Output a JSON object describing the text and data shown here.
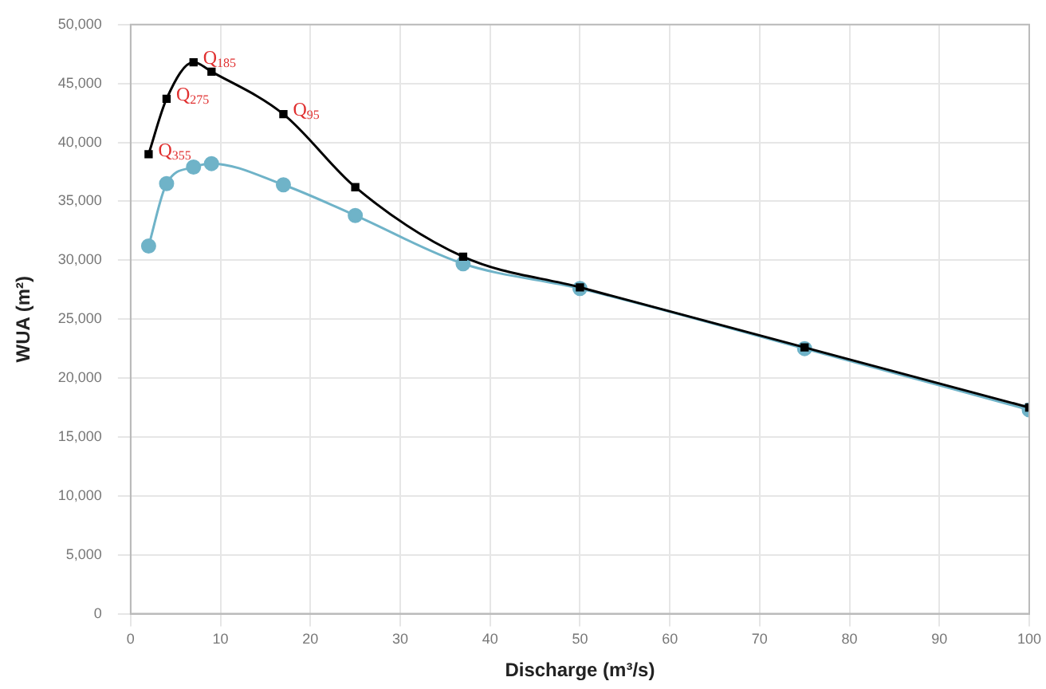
{
  "chart_data": {
    "type": "line",
    "xlabel": "Discharge (m³/s)",
    "ylabel": "WUA (m²)",
    "xlim": [
      0,
      100
    ],
    "xticks": [
      0,
      10,
      20,
      30,
      40,
      50,
      60,
      70,
      80,
      90,
      100
    ],
    "ylim": [
      0,
      50000
    ],
    "yticks": [
      {
        "value": 0,
        "label": "0"
      },
      {
        "value": 5000,
        "label": "5,000"
      },
      {
        "value": 10000,
        "label": "10,000"
      },
      {
        "value": 15000,
        "label": "15,000"
      },
      {
        "value": 20000,
        "label": "20,000"
      },
      {
        "value": 25000,
        "label": "25,000"
      },
      {
        "value": 30000,
        "label": "30,000"
      },
      {
        "value": 35000,
        "label": "35,000"
      },
      {
        "value": 40000,
        "label": "40,000"
      },
      {
        "value": 45000,
        "label": "45,000"
      },
      {
        "value": 50000,
        "label": "50,000"
      }
    ],
    "grid": true,
    "legend": false,
    "series": [
      {
        "color": "#000000",
        "marker": "square",
        "x": [
          2,
          4,
          7,
          9,
          17,
          25,
          37,
          50,
          75,
          100
        ],
        "values": [
          39000,
          43700,
          46800,
          46000,
          42400,
          36200,
          30300,
          27700,
          22600,
          17500
        ]
      },
      {
        "color": "#6fb3c8",
        "marker": "circle",
        "x": [
          2,
          4,
          7,
          9,
          17,
          25,
          37,
          50,
          75,
          100
        ],
        "values": [
          31200,
          36500,
          37900,
          38200,
          36400,
          33800,
          29700,
          27600,
          22500,
          17300
        ]
      }
    ],
    "annotations": [
      {
        "text": "Q$_{355}$",
        "x": 2,
        "y": 39000
      },
      {
        "text": "Q$_{275}$",
        "x": 4,
        "y": 43700
      },
      {
        "text": "Q$_{185}$",
        "x": 7,
        "y": 46800
      },
      {
        "text": "Q$_{95}$",
        "x": 17,
        "y": 42400
      }
    ]
  }
}
